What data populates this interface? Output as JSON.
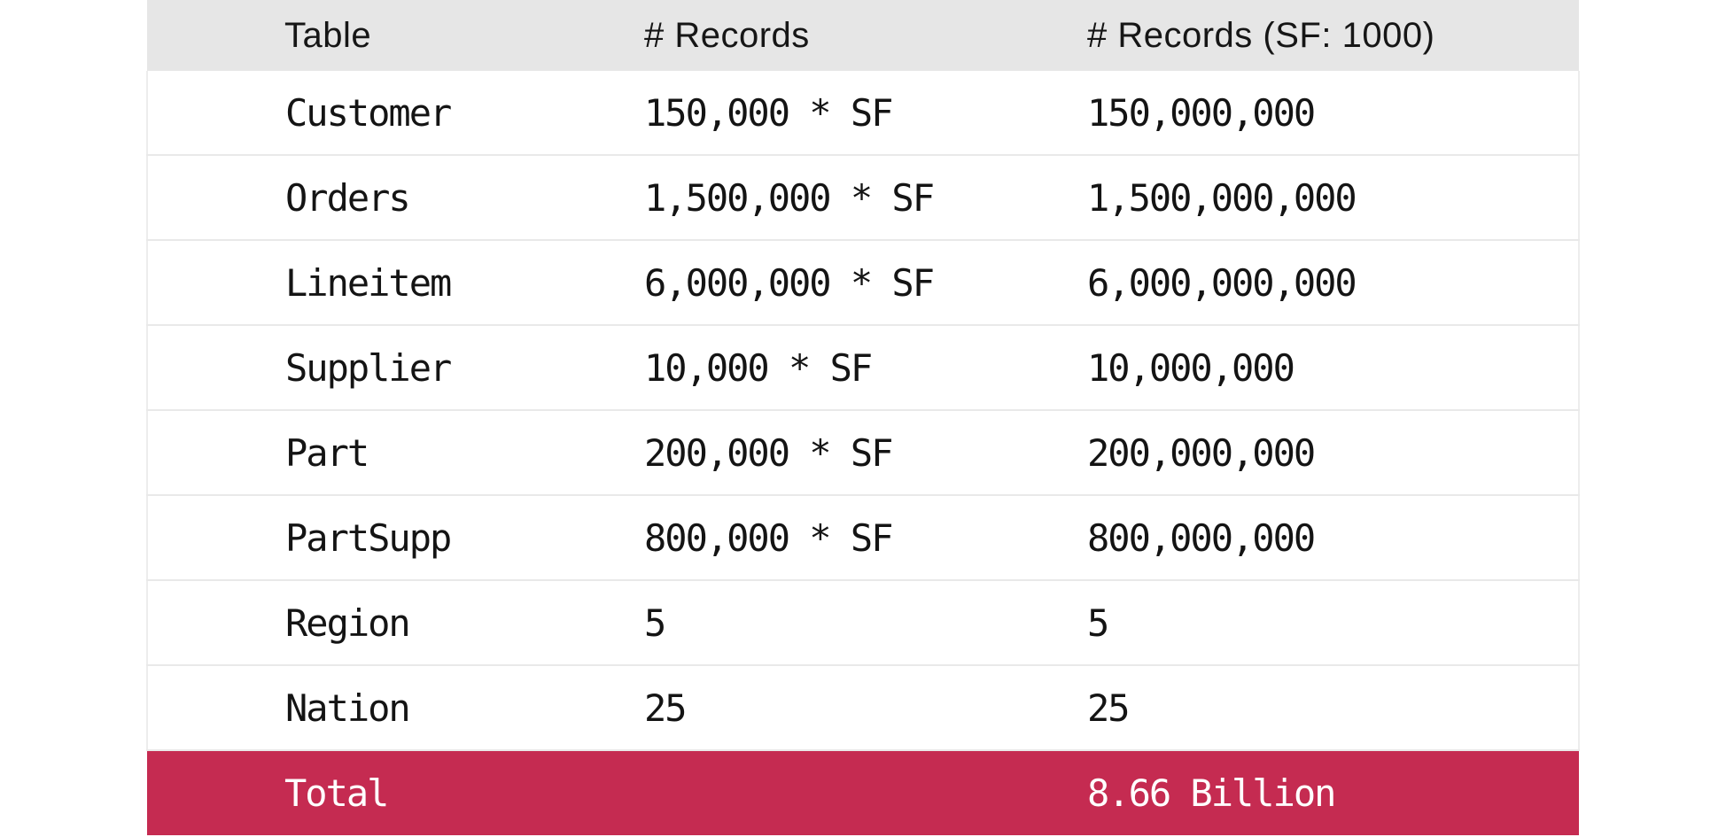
{
  "chart_data": {
    "type": "table",
    "columns": [
      "Table",
      "# Records",
      "# Records (SF: 1000)"
    ],
    "rows": [
      [
        "Customer",
        "150,000 * SF",
        "150,000,000"
      ],
      [
        "Orders",
        "1,500,000 * SF",
        "1,500,000,000"
      ],
      [
        "Lineitem",
        "6,000,000 * SF",
        "6,000,000,000"
      ],
      [
        "Supplier",
        "10,000 * SF",
        "10,000,000"
      ],
      [
        "Part",
        "200,000 * SF",
        "200,000,000"
      ],
      [
        "PartSupp",
        "800,000 * SF",
        "800,000,000"
      ],
      [
        "Region",
        "5",
        "5"
      ],
      [
        "Nation",
        "25",
        "25"
      ]
    ],
    "total_row": [
      "Total",
      "",
      "8.66 Billion"
    ],
    "layout_hints": {
      "header_position": "top",
      "grid": "horizontal-lines",
      "total_row_highlighted": true
    }
  },
  "colors": {
    "page_background": "#ffffff",
    "header_background": "#e6e6e6",
    "row_background": "#ffffff",
    "row_separator": "#e9e9e9",
    "total_row_background": "#c52b51",
    "total_row_text": "#ffffff",
    "body_text": "#141414"
  }
}
